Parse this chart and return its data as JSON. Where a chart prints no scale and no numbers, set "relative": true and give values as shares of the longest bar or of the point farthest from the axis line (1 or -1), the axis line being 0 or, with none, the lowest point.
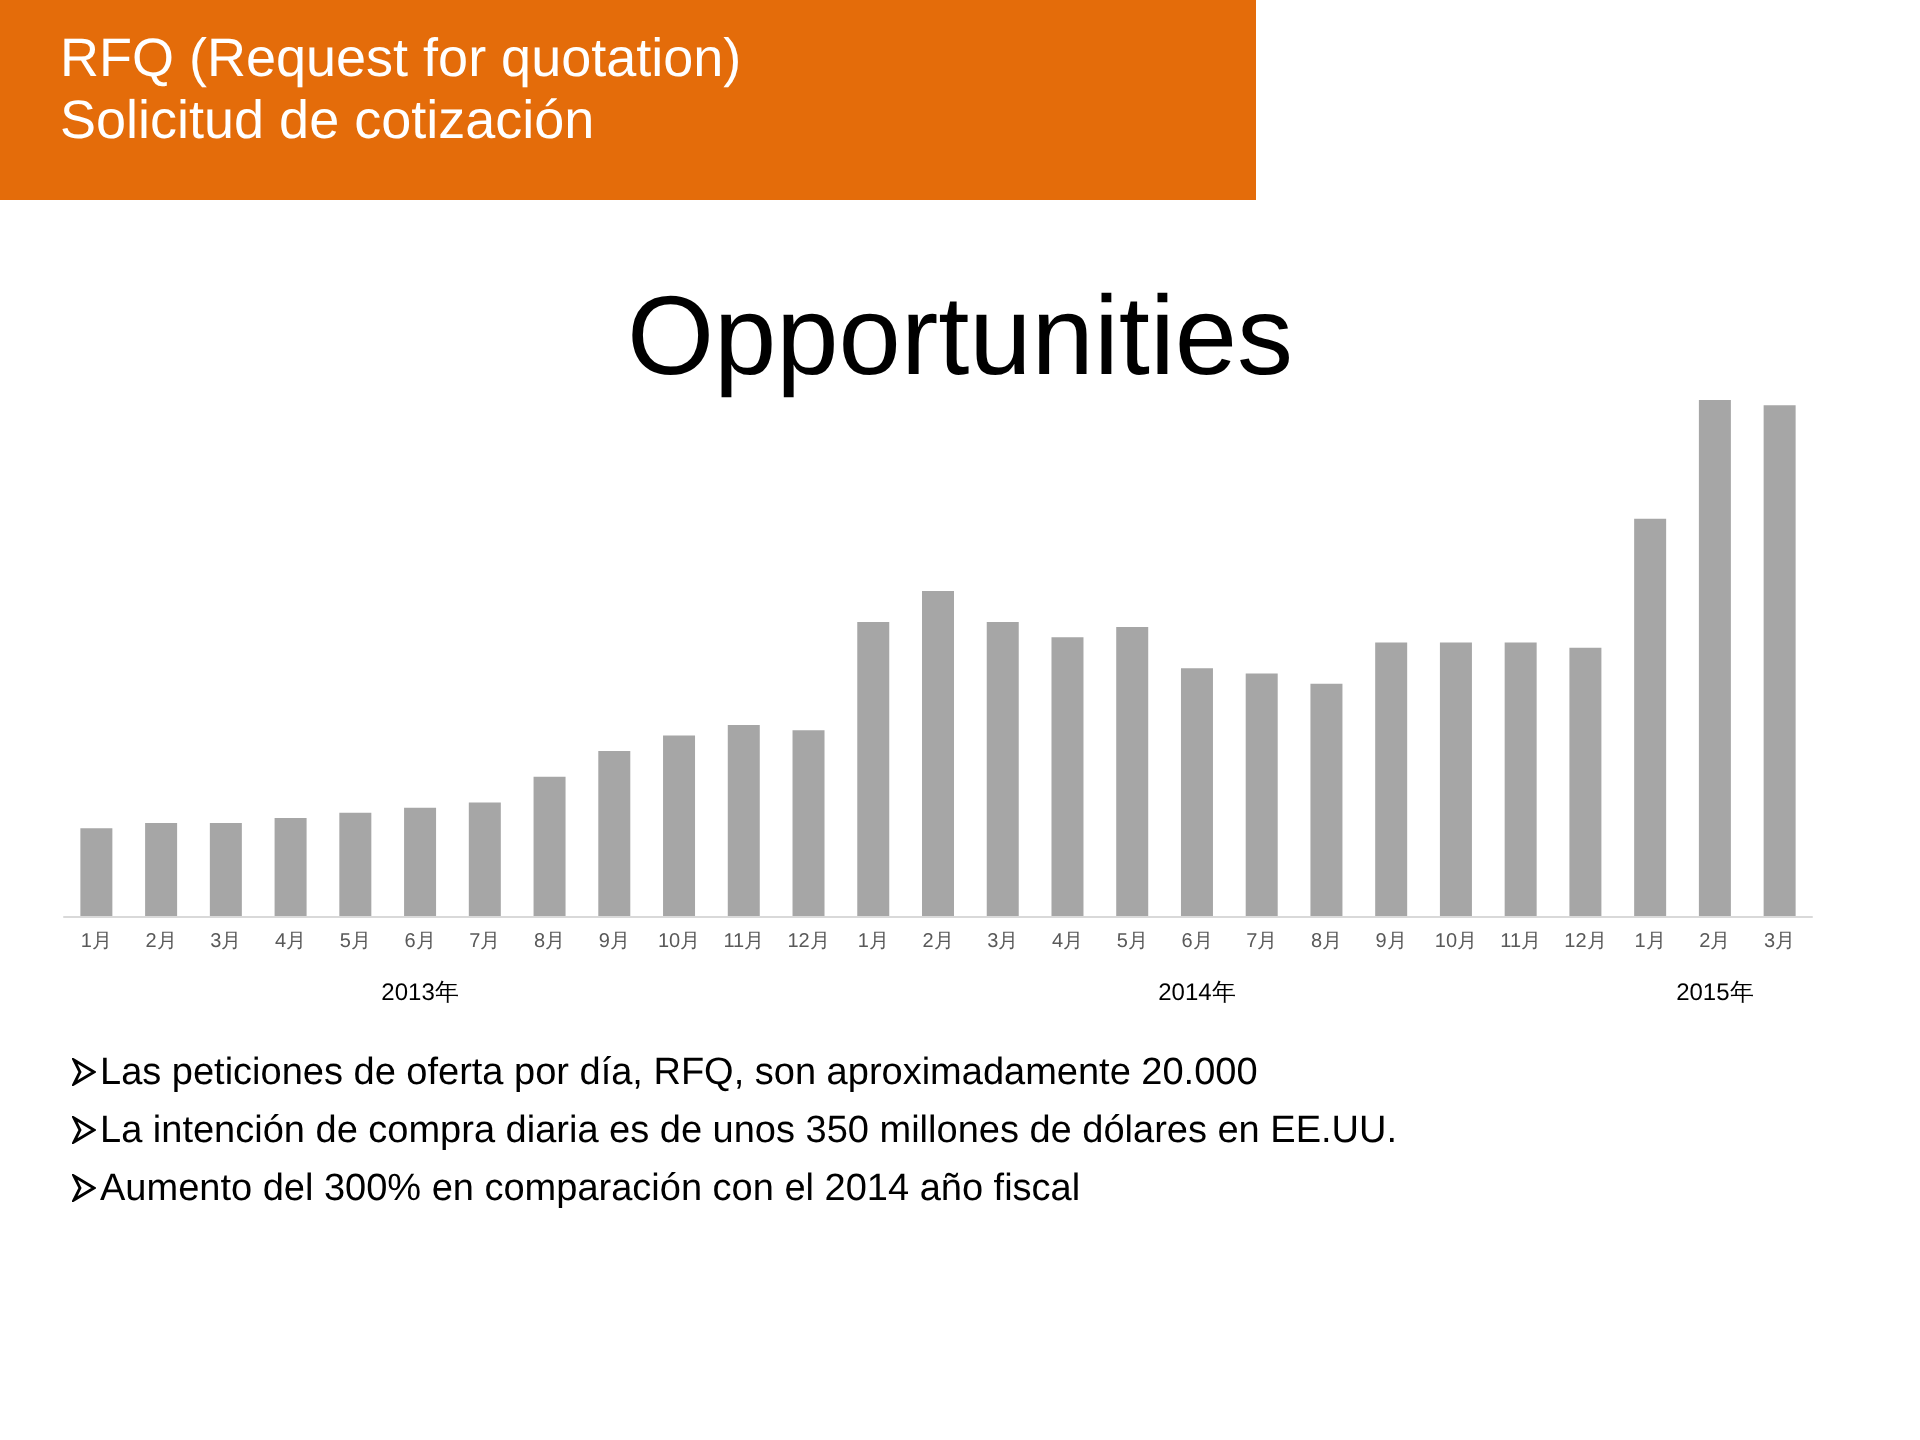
{
  "chart_data": {
    "type": "bar",
    "title": "Opportunities",
    "subtitle": "RFQ (Request for quotation)\nSolicitud de cotización",
    "categories": [
      "1月",
      "2月",
      "3月",
      "4月",
      "5月",
      "6月",
      "7月",
      "8月",
      "9月",
      "10月",
      "11月",
      "12月",
      "1月",
      "2月",
      "3月",
      "4月",
      "5月",
      "6月",
      "7月",
      "8月",
      "9月",
      "10月",
      "11月",
      "12月",
      "1月",
      "2月",
      "3月"
    ],
    "values": [
      0.17,
      0.18,
      0.18,
      0.19,
      0.2,
      0.21,
      0.22,
      0.27,
      0.32,
      0.35,
      0.37,
      0.36,
      0.57,
      0.63,
      0.57,
      0.54,
      0.56,
      0.48,
      0.47,
      0.45,
      0.53,
      0.53,
      0.53,
      0.52,
      0.77,
      1,
      0.99
    ],
    "color": "#a6a6a6",
    "relative": true,
    "annotations": [
      "2013年",
      "2014年",
      "2015年",
      "Las peticiones de oferta por día, RFQ, son aproximadamente 20.000",
      "La intención de compra diaria es de unos 350 millones de dólares en EE.UU.",
      "Aumento del 300% en comparación con el 2014 año fiscal"
    ]
  }
}
